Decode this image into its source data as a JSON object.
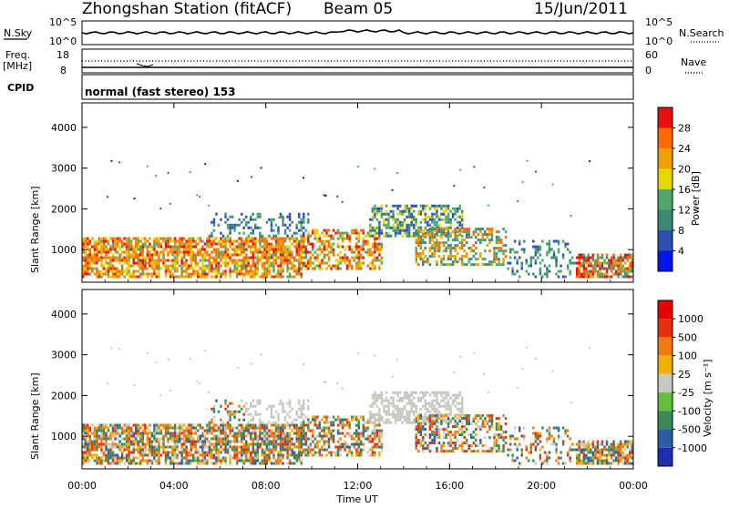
{
  "header": {
    "station": "Zhongshan Station (fitACF)",
    "beam": "Beam 05",
    "date": "15/Jun/2011"
  },
  "strip_panels": {
    "nsky": {
      "label": "N.Sky",
      "ticks_left": [
        "10^5",
        "10^0"
      ],
      "right_label": "N.Search",
      "ticks_right": [
        "10^5",
        "10^0"
      ]
    },
    "freq": {
      "label_top": "Freq.",
      "label_bottom": "[MHz]",
      "ticks_left": [
        "18",
        "8"
      ],
      "right_label": "Nave",
      "ticks_right": [
        "60",
        "0"
      ]
    },
    "cpid": {
      "label": "CPID",
      "text": "normal (fast stereo) 153"
    }
  },
  "chart_data": [
    {
      "type": "heatmap",
      "name": "power",
      "ylabel": "Slant Range [km]",
      "ylim": [
        200,
        4600
      ],
      "xlim": [
        0,
        24
      ],
      "yticks": [
        "1000",
        "2000",
        "3000",
        "4000"
      ],
      "colorbar": {
        "label": "Power [dB]",
        "ticks": [
          "4",
          "8",
          "12",
          "16",
          "20",
          "24",
          "28"
        ],
        "colors": [
          "#0018e6",
          "#2e50b4",
          "#3b8a77",
          "#4fa86a",
          "#e6d800",
          "#f0a000",
          "#ff6a00",
          "#e81010"
        ]
      },
      "description_regions": [
        {
          "t0": 0.0,
          "t1": 9.5,
          "r0": 300,
          "r1": 1300,
          "level": 6
        },
        {
          "t0": 9.5,
          "t1": 16.5,
          "r0": 600,
          "r1": 2000,
          "level": 3
        },
        {
          "t0": 16.5,
          "t1": 24.0,
          "r0": 300,
          "r1": 1300,
          "level": 3
        }
      ]
    },
    {
      "type": "heatmap",
      "name": "velocity",
      "ylabel": "Slant Range [km]",
      "ylim": [
        200,
        4600
      ],
      "xlim": [
        0,
        24
      ],
      "yticks": [
        "1000",
        "2000",
        "3000",
        "4000"
      ],
      "colorbar": {
        "label": "Velocity [m s⁻¹]",
        "ticks": [
          "1000",
          "500",
          "100",
          "25",
          "-25",
          "-100",
          "-500",
          "-1000"
        ],
        "colors": [
          "#1e2eb0",
          "#2a5fa8",
          "#3b8a5a",
          "#5fbf3a",
          "#c8c8c0",
          "#f0b000",
          "#f07a10",
          "#e83010",
          "#e80000"
        ]
      }
    }
  ],
  "x_axis": {
    "label": "Time UT",
    "ticks": [
      "00:00",
      "04:00",
      "08:00",
      "12:00",
      "16:00",
      "20:00",
      "00:00"
    ],
    "values": [
      0,
      4,
      8,
      12,
      16,
      20,
      24
    ]
  }
}
